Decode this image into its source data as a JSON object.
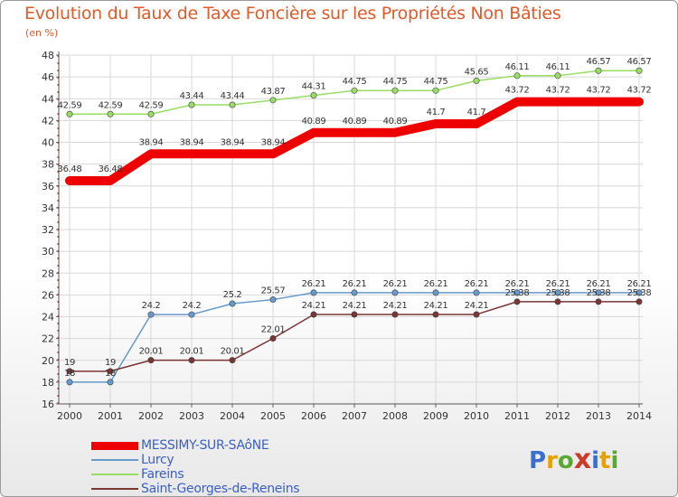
{
  "chart_data": {
    "type": "line",
    "title": "Evolution du Taux de Taxe Foncière sur les Propriétés Non Bâties",
    "ylabel": "(en %)",
    "xlabel": "",
    "ylim": [
      16,
      48
    ],
    "yticks": [
      16,
      18,
      20,
      22,
      24,
      26,
      28,
      30,
      32,
      34,
      36,
      38,
      40,
      42,
      44,
      46,
      48
    ],
    "grid": true,
    "categories": [
      "2000",
      "2001",
      "2002",
      "2003",
      "2004",
      "2005",
      "2006",
      "2007",
      "2008",
      "2009",
      "2010",
      "2011",
      "2012",
      "2013",
      "2014"
    ],
    "series": [
      {
        "name": "Fareins",
        "color": "#99dd66",
        "values": [
          42.59,
          42.59,
          42.59,
          43.44,
          43.44,
          43.87,
          44.31,
          44.75,
          44.75,
          44.75,
          45.65,
          46.11,
          46.11,
          46.57,
          46.57
        ],
        "labels": [
          "42.59",
          "42.59",
          "42.59",
          "43.44",
          "43.44",
          "43.87",
          "44.31",
          "44.75",
          "44.75",
          "44.75",
          "45.65",
          "46.11",
          "46.11",
          "46.57",
          "46.57"
        ]
      },
      {
        "name": "MESSIMY-SUR-SAôNE",
        "color": "#ee0000",
        "values": [
          36.48,
          36.48,
          38.94,
          38.94,
          38.94,
          38.94,
          40.89,
          40.89,
          40.89,
          41.7,
          41.7,
          43.72,
          43.72,
          43.72,
          43.72
        ],
        "labels": [
          "36.48",
          "36.48",
          "38.94",
          "38.94",
          "38.94",
          "38.94",
          "40.89",
          "40.89",
          "40.89",
          "41.7",
          "41.7",
          "43.72",
          "43.72",
          "43.72",
          "43.72"
        ]
      },
      {
        "name": "Lurcy",
        "color": "#6699cc",
        "values": [
          18,
          18,
          24.2,
          24.2,
          25.2,
          25.57,
          26.21,
          26.21,
          26.21,
          26.21,
          26.21,
          26.21,
          26.21,
          26.21,
          26.21
        ],
        "labels": [
          "18",
          "18",
          "24.2",
          "24.2",
          "25.2",
          "25.57",
          "26.21",
          "26.21",
          "26.21",
          "26.21",
          "26.21",
          "26.21",
          "26.21",
          "26.21",
          "26.21"
        ]
      },
      {
        "name": "Saint-Georges-de-Reneins",
        "color": "#7a3535",
        "values": [
          19,
          19,
          20.01,
          20.01,
          20.01,
          22.01,
          24.21,
          24.21,
          24.21,
          24.21,
          24.21,
          25.38,
          25.38,
          25.38,
          25.38
        ],
        "labels": [
          "19",
          "19",
          "20.01",
          "20.01",
          "20.01",
          "22.01",
          "24.21",
          "24.21",
          "24.21",
          "24.21",
          "24.21",
          "25.38",
          "25.38",
          "25.38",
          "25.38"
        ]
      }
    ],
    "legend": [
      "MESSIMY-SUR-SAôNE",
      "Lurcy",
      "Fareins",
      "Saint-Georges-de-Reneins"
    ],
    "legend_position": "bottom-left"
  },
  "logo": {
    "letters": [
      "P",
      "r",
      "o",
      "x",
      "i",
      "t",
      "i"
    ],
    "colors": [
      "#3a6fd0",
      "#e6a100",
      "#5aa832",
      "#d03a2a",
      "#3a6fd0",
      "#e6a100",
      "#5aa832"
    ]
  }
}
